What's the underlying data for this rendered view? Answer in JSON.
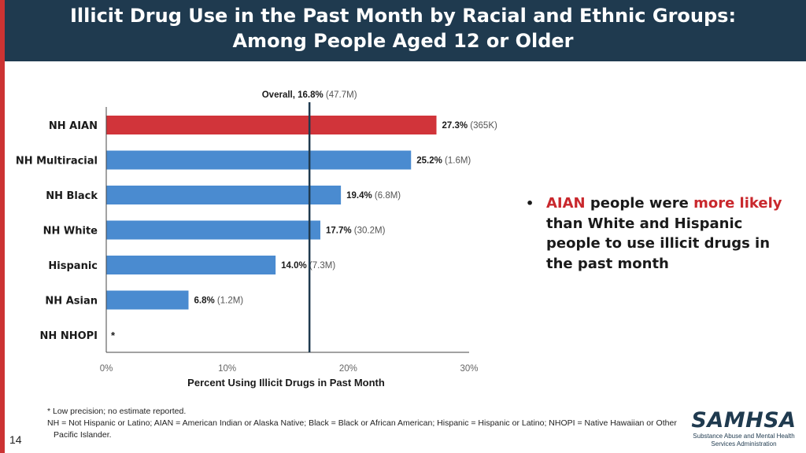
{
  "header": {
    "title_line1": "Illicit Drug Use in the Past Month by Racial and Ethnic Groups:",
    "title_line2": "Among People Aged 12 or Older",
    "background_color": "#1f3a4f",
    "accent_color": "#cc3333"
  },
  "chart_data": {
    "type": "bar",
    "orientation": "horizontal",
    "categories": [
      "NH AIAN",
      "NH Multiracial",
      "NH Black",
      "NH White",
      "Hispanic",
      "NH Asian",
      "NH NHOPI"
    ],
    "values": [
      27.3,
      25.2,
      19.4,
      17.7,
      14.0,
      6.8,
      null
    ],
    "value_labels": [
      "27.3%",
      "25.2%",
      "19.4%",
      "17.7%",
      "14.0%",
      "6.8%",
      "*"
    ],
    "counts": [
      "(365K)",
      "(1.6M)",
      "(6.8M)",
      "(30.2M)",
      "(7.3M)",
      "(1.2M)",
      ""
    ],
    "bar_colors": [
      "#d1343a",
      "#4a8bd0",
      "#4a8bd0",
      "#4a8bd0",
      "#4a8bd0",
      "#4a8bd0",
      "#4a8bd0"
    ],
    "xlabel": "Percent Using Illicit Drugs in Past Month",
    "xlim": [
      0,
      30
    ],
    "xticks": [
      "0%",
      "10%",
      "20%",
      "30%"
    ],
    "reference_line": {
      "value": 16.8,
      "label": "Overall, 16.8%",
      "count": "(47.7M)"
    },
    "grid": false
  },
  "bullet": {
    "part1": "AIAN",
    "part2": " people were ",
    "part3": "more likely",
    "part4": " than White and Hispanic people to use illicit drugs in the past month"
  },
  "notes": {
    "note1": "* Low precision; no estimate reported.",
    "note2": "NH = Not Hispanic or Latino; AIAN = American Indian or Alaska Native; Black = Black or African American; Hispanic = Hispanic or Latino; NHOPI = Native Hawaiian or Other Pacific Islander."
  },
  "page_number": "14",
  "logo": {
    "word": "SAMHSA",
    "subtitle": "Substance Abuse and Mental Health Services Administration"
  }
}
